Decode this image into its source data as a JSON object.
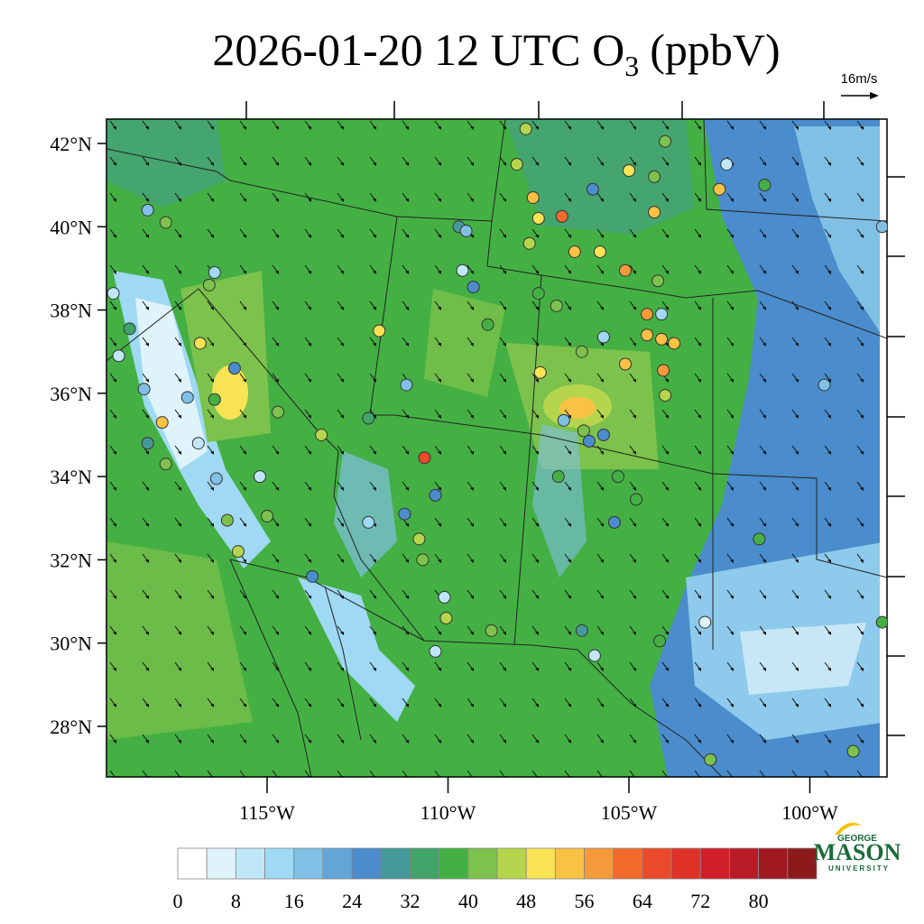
{
  "header": {
    "title": "2026-01-20 12 UTC O",
    "title_subscript": "3",
    "title_units": "(ppbV)",
    "wind_reference": "16m/s"
  },
  "map": {
    "lat_ticks": [
      {
        "value": 42,
        "label": "42°N"
      },
      {
        "value": 40,
        "label": "40°N"
      },
      {
        "value": 38,
        "label": "38°N"
      },
      {
        "value": 36,
        "label": "36°N"
      },
      {
        "value": 34,
        "label": "34°N"
      },
      {
        "value": 32,
        "label": "32°N"
      },
      {
        "value": 30,
        "label": "30°N"
      },
      {
        "value": 28,
        "label": "28°N"
      }
    ],
    "lon_ticks": [
      {
        "value": -115,
        "label": "115°W"
      },
      {
        "value": -110,
        "label": "110°W"
      },
      {
        "value": -105,
        "label": "105°W"
      },
      {
        "value": -100,
        "label": "100°W"
      }
    ],
    "stations": {
      "lon": [
        -117.8,
        -118.3,
        -116.45,
        -116.6,
        -116.85,
        -115.9,
        -116.45,
        -117.9,
        -118.3,
        -116.9,
        -115.2,
        -116.1,
        -115.0,
        -115.8,
        -113.75,
        -113.5,
        -112.2,
        -111.9,
        -111.15,
        -110.65,
        -110.35,
        -111.2,
        -110.8,
        -110.7,
        -110.1,
        -110.05,
        -110.35,
        -108.8,
        -109.7,
        -109.5,
        -109.6,
        -109.3,
        -108.9,
        -107.85,
        -108.1,
        -107.65,
        -107.5,
        -106.85,
        -107.75,
        -106.0,
        -105.0,
        -104.0,
        -104.3,
        -104.3,
        -105.1,
        -105.8,
        -106.5,
        -104.2,
        -104.5,
        -104.1,
        -104.5,
        -104.1,
        -103.75,
        -104.05,
        -104.0,
        -105.1,
        -105.7,
        -107.45,
        -107.0,
        -107.5,
        -106.3,
        -106.8,
        -106.1,
        -106.25,
        -105.7,
        -105.3,
        -104.8,
        -105.4,
        -106.95,
        -106.3,
        -105.95,
        -104.15,
        -102.9,
        -102.3,
        -102.5,
        -101.25,
        -99.6,
        -101.4,
        -98.0,
        -98.0,
        -102.75,
        -98.8,
        -114.7,
        -119.25,
        -118.8,
        -118.4,
        -119.1,
        -117.2,
        -116.4,
        -112.2,
        -117.8
      ],
      "lat": [
        40.1,
        40.4,
        38.9,
        38.6,
        37.2,
        36.6,
        35.85,
        35.3,
        34.8,
        34.8,
        34.0,
        32.95,
        33.05,
        32.2,
        31.6,
        35.0,
        35.4,
        37.5,
        36.2,
        34.45,
        33.55,
        33.1,
        32.5,
        32.0,
        31.1,
        30.6,
        29.8,
        30.3,
        40.0,
        39.9,
        38.95,
        38.55,
        37.65,
        42.35,
        41.5,
        40.7,
        40.2,
        40.25,
        39.6,
        40.9,
        41.35,
        42.05,
        41.2,
        40.35,
        38.95,
        39.4,
        39.4,
        38.7,
        37.9,
        37.9,
        37.4,
        37.3,
        37.2,
        36.55,
        35.95,
        36.7,
        37.35,
        36.5,
        38.1,
        38.4,
        37.0,
        35.35,
        34.85,
        35.1,
        35.0,
        34.0,
        33.45,
        32.9,
        34.0,
        30.3,
        29.7,
        30.05,
        30.5,
        41.5,
        40.9,
        41.0,
        36.2,
        32.5,
        40.0,
        30.5,
        27.2,
        27.4,
        35.55,
        38.4,
        37.55,
        36.1,
        36.9,
        35.9,
        33.95,
        32.9,
        34.3
      ],
      "values": [
        38,
        12,
        10,
        38,
        44,
        22,
        34,
        48,
        24,
        4,
        6,
        38,
        36,
        42,
        20,
        40,
        30,
        44,
        12,
        62,
        20,
        22,
        40,
        36,
        6,
        42,
        4,
        38,
        24,
        12,
        6,
        22,
        34,
        40,
        40,
        48,
        44,
        56,
        40,
        22,
        44,
        38,
        38,
        48,
        54,
        44,
        48,
        38,
        52,
        10,
        50,
        50,
        50,
        52,
        40,
        48,
        10,
        44,
        36,
        34,
        36,
        12,
        20,
        38,
        22,
        34,
        34,
        20,
        32,
        24,
        6,
        34,
        2,
        6,
        50,
        34,
        12,
        34,
        12,
        34,
        38,
        38,
        36,
        4,
        30,
        14,
        4,
        14,
        12,
        10,
        36
      ]
    }
  },
  "colorbar": {
    "levels": [
      0,
      4,
      8,
      12,
      16,
      20,
      24,
      28,
      32,
      36,
      40,
      44,
      48,
      52,
      56,
      60,
      64,
      68,
      72,
      76,
      80,
      84
    ],
    "colors": [
      "#ffffff",
      "#dff3fb",
      "#bfe7f7",
      "#9fd9f3",
      "#80c0e4",
      "#64a5d8",
      "#4a8ccc",
      "#45999a",
      "#43a46a",
      "#44b044",
      "#7cc24c",
      "#b5d64c",
      "#f7e354",
      "#f9c244",
      "#f59a3a",
      "#f26a2c",
      "#ea4a2a",
      "#de3229",
      "#d01f29",
      "#b81b25",
      "#a01820",
      "#8c1a1a"
    ],
    "ticks": [
      0,
      8,
      16,
      24,
      32,
      40,
      48,
      56,
      64,
      72,
      80
    ]
  },
  "logo": {
    "top": "GEORGE",
    "main": "MASON",
    "bottom": "UNIVERSITY"
  }
}
